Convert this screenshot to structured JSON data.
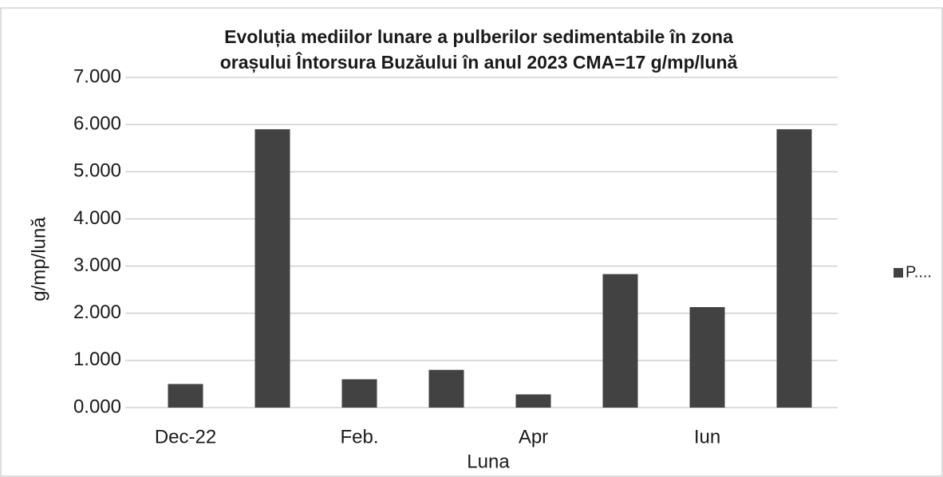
{
  "chart_data": {
    "type": "bar",
    "title": [
      "Evoluția mediilor lunare a pulberilor  sedimentabile în zona",
      "orașului  Întorsura Buzăului în anul 2023  CMA=17 g/mp/lună"
    ],
    "x_label": "Luna",
    "y_label": "g/mp/lună",
    "categories": [
      "Dec-22",
      null,
      "Feb.",
      null,
      "Apr",
      null,
      "Iun",
      null
    ],
    "series": [
      {
        "name": "P....",
        "color": "#424242",
        "values": [
          0.5,
          5.9,
          0.6,
          0.8,
          0.28,
          2.83,
          2.13,
          5.9
        ]
      }
    ],
    "ylim": [
      0,
      7
    ],
    "yticks": [
      {
        "value": 0,
        "label": "0.000"
      },
      {
        "value": 1,
        "label": "1.000"
      },
      {
        "value": 2,
        "label": "2.000"
      },
      {
        "value": 3,
        "label": "3.000"
      },
      {
        "value": 4,
        "label": "4.000"
      },
      {
        "value": 5,
        "label": "5.000"
      },
      {
        "value": 6,
        "label": "6.000"
      },
      {
        "value": 7,
        "label": "7.000"
      }
    ],
    "grid": true,
    "legend": "right"
  }
}
